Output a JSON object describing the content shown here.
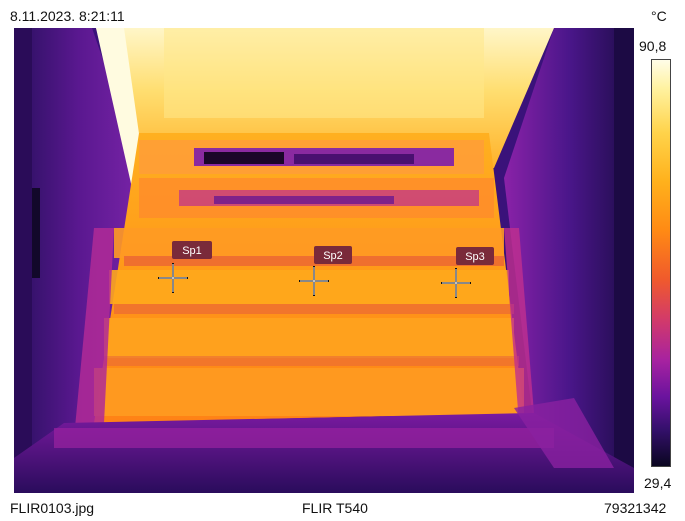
{
  "header": {
    "timestamp": "8.11.2023. 8:21:11",
    "unit": "°C"
  },
  "scale": {
    "max": "90,8",
    "min": "29,4"
  },
  "spots": [
    {
      "label": "Sp1"
    },
    {
      "label": "Sp2"
    },
    {
      "label": "Sp3"
    }
  ],
  "footer": {
    "filename": "FLIR0103.jpg",
    "camera": "FLIR T540",
    "serial": "79321342"
  },
  "palette": {
    "cold": "#0a0620",
    "mid": "#a722a0",
    "warm": "#ff8a14",
    "hot": "#fffde8"
  }
}
